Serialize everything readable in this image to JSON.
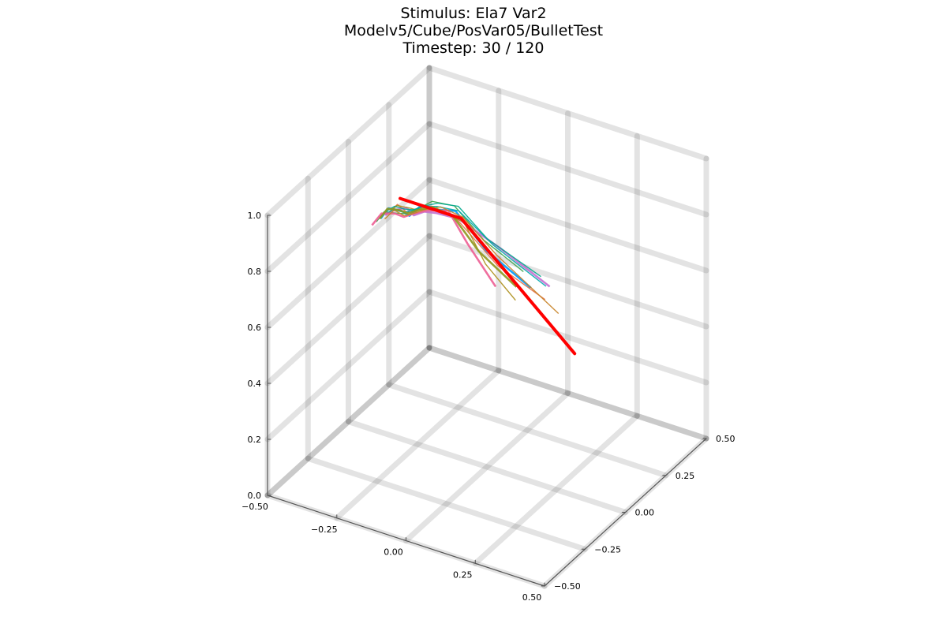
{
  "chart_data": {
    "type": "line",
    "projection": "3d",
    "title_lines": [
      "Stimulus: Ela7 Var2",
      "Modelv5/Cube/PosVar05/BulletTest",
      "Timestep: 30 / 120"
    ],
    "x_axis": {
      "range": [
        -0.5,
        0.5
      ],
      "ticks": [
        -0.5,
        -0.25,
        0.0,
        0.25,
        0.5
      ],
      "tick_labels": [
        "−0.50",
        "−0.25",
        "0.00",
        "0.25",
        "0.50"
      ]
    },
    "y_axis": {
      "range": [
        -0.5,
        0.5
      ],
      "ticks": [
        -0.5,
        -0.25,
        0.0,
        0.25,
        0.5
      ],
      "tick_labels": [
        "−0.50",
        "−0.25",
        "0.00",
        "0.25",
        "0.50"
      ]
    },
    "z_axis": {
      "range": [
        0.0,
        1.0
      ],
      "ticks": [
        0.0,
        0.2,
        0.4,
        0.6,
        0.8,
        1.0
      ],
      "tick_labels": [
        "0.0",
        "0.2",
        "0.4",
        "0.6",
        "0.8",
        "1.0"
      ]
    },
    "grid": true,
    "legend": "none",
    "highlight_color": "#ff0000",
    "palette": [
      "#009AFA",
      "#E36F47",
      "#3EA44E",
      "#C371D2",
      "#AC8E18",
      "#00AAAE",
      "#ED5E93",
      "#C68225",
      "#00A98D",
      "#8E971E"
    ],
    "highlight_series": {
      "points": [
        [
          -0.36,
          0.08,
          0.8
        ],
        [
          -0.22,
          0.08,
          0.8
        ],
        [
          -0.14,
          0.08,
          0.8
        ],
        [
          0.27,
          0.08,
          0.45
        ]
      ]
    },
    "series": [
      {
        "points": [
          [
            -0.5,
            0.2,
            0.62
          ],
          [
            -0.46,
            0.18,
            0.68
          ],
          [
            -0.4,
            0.16,
            0.7
          ],
          [
            -0.35,
            0.12,
            0.72
          ],
          [
            -0.3,
            0.1,
            0.78
          ],
          [
            -0.24,
            0.08,
            0.8
          ],
          [
            -0.16,
            0.08,
            0.82
          ],
          [
            -0.06,
            0.1,
            0.7
          ],
          [
            0.1,
            0.1,
            0.62
          ]
        ]
      },
      {
        "points": [
          [
            -0.48,
            0.22,
            0.64
          ],
          [
            -0.44,
            0.2,
            0.69
          ],
          [
            -0.38,
            0.15,
            0.71
          ],
          [
            -0.33,
            0.12,
            0.74
          ],
          [
            -0.28,
            0.1,
            0.79
          ],
          [
            -0.22,
            0.07,
            0.81
          ],
          [
            -0.15,
            0.07,
            0.8
          ],
          [
            -0.02,
            0.1,
            0.66
          ],
          [
            0.14,
            0.12,
            0.58
          ]
        ]
      },
      {
        "points": [
          [
            -0.51,
            0.19,
            0.61
          ],
          [
            -0.47,
            0.17,
            0.67
          ],
          [
            -0.41,
            0.14,
            0.7
          ],
          [
            -0.36,
            0.11,
            0.73
          ],
          [
            -0.31,
            0.09,
            0.77
          ],
          [
            -0.25,
            0.09,
            0.82
          ],
          [
            -0.17,
            0.09,
            0.83
          ],
          [
            -0.08,
            0.12,
            0.72
          ],
          [
            0.05,
            0.14,
            0.64
          ]
        ]
      },
      {
        "points": [
          [
            -0.49,
            0.21,
            0.63
          ],
          [
            -0.45,
            0.19,
            0.67
          ],
          [
            -0.39,
            0.17,
            0.71
          ],
          [
            -0.34,
            0.13,
            0.72
          ],
          [
            -0.29,
            0.11,
            0.76
          ],
          [
            -0.23,
            0.08,
            0.79
          ],
          [
            -0.14,
            0.06,
            0.81
          ],
          [
            0.0,
            0.08,
            0.74
          ],
          [
            0.18,
            0.08,
            0.66
          ]
        ]
      },
      {
        "points": [
          [
            -0.47,
            0.2,
            0.65
          ],
          [
            -0.43,
            0.18,
            0.7
          ],
          [
            -0.37,
            0.16,
            0.72
          ],
          [
            -0.32,
            0.12,
            0.75
          ],
          [
            -0.27,
            0.1,
            0.78
          ],
          [
            -0.21,
            0.08,
            0.8
          ],
          [
            -0.13,
            0.08,
            0.79
          ],
          [
            -0.04,
            0.06,
            0.68
          ],
          [
            0.08,
            0.04,
            0.6
          ]
        ]
      },
      {
        "points": [
          [
            -0.5,
            0.23,
            0.62
          ],
          [
            -0.46,
            0.21,
            0.66
          ],
          [
            -0.4,
            0.17,
            0.69
          ],
          [
            -0.35,
            0.14,
            0.73
          ],
          [
            -0.3,
            0.12,
            0.77
          ],
          [
            -0.24,
            0.1,
            0.8
          ],
          [
            -0.16,
            0.1,
            0.81
          ],
          [
            -0.06,
            0.14,
            0.7
          ],
          [
            0.12,
            0.16,
            0.6
          ]
        ]
      },
      {
        "points": [
          [
            -0.52,
            0.18,
            0.6
          ],
          [
            -0.48,
            0.17,
            0.66
          ],
          [
            -0.42,
            0.15,
            0.69
          ],
          [
            -0.37,
            0.12,
            0.71
          ],
          [
            -0.32,
            0.1,
            0.75
          ],
          [
            -0.26,
            0.08,
            0.79
          ],
          [
            -0.18,
            0.07,
            0.82
          ],
          [
            -0.1,
            0.05,
            0.74
          ],
          [
            0.02,
            0.02,
            0.64
          ]
        ]
      },
      {
        "points": [
          [
            -0.48,
            0.19,
            0.63
          ],
          [
            -0.44,
            0.18,
            0.68
          ],
          [
            -0.38,
            0.14,
            0.7
          ],
          [
            -0.33,
            0.11,
            0.74
          ],
          [
            -0.28,
            0.09,
            0.78
          ],
          [
            -0.22,
            0.09,
            0.81
          ],
          [
            -0.14,
            0.09,
            0.8
          ],
          [
            -0.03,
            0.11,
            0.69
          ],
          [
            0.2,
            0.1,
            0.56
          ]
        ]
      },
      {
        "points": [
          [
            -0.49,
            0.22,
            0.64
          ],
          [
            -0.45,
            0.2,
            0.68
          ],
          [
            -0.39,
            0.16,
            0.71
          ],
          [
            -0.34,
            0.13,
            0.74
          ],
          [
            -0.29,
            0.11,
            0.78
          ],
          [
            -0.23,
            0.09,
            0.82
          ],
          [
            -0.15,
            0.08,
            0.84
          ],
          [
            -0.05,
            0.09,
            0.75
          ],
          [
            0.16,
            0.06,
            0.7
          ]
        ]
      },
      {
        "points": [
          [
            -0.51,
            0.21,
            0.61
          ],
          [
            -0.47,
            0.19,
            0.67
          ],
          [
            -0.41,
            0.16,
            0.7
          ],
          [
            -0.36,
            0.13,
            0.72
          ],
          [
            -0.31,
            0.11,
            0.76
          ],
          [
            -0.25,
            0.09,
            0.8
          ],
          [
            -0.17,
            0.08,
            0.8
          ],
          [
            -0.07,
            0.07,
            0.71
          ],
          [
            0.06,
            0.08,
            0.62
          ]
        ]
      }
    ]
  }
}
